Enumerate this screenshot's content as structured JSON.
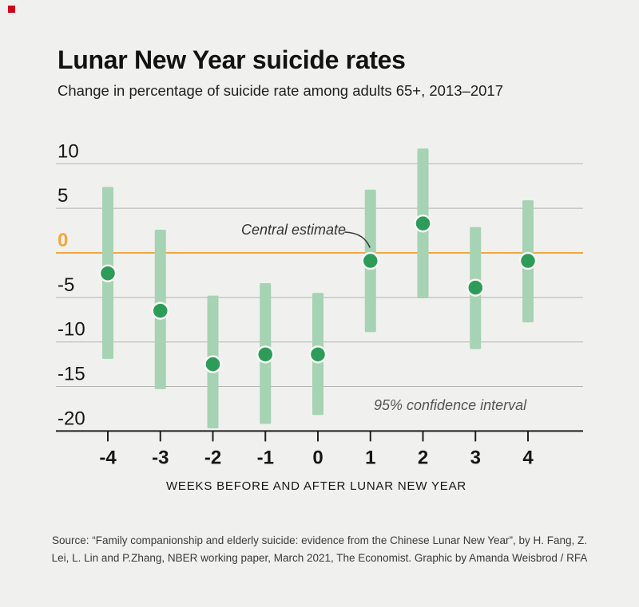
{
  "brand": {
    "mark_color": "#d0021b"
  },
  "header": {
    "title": "Lunar New Year suicide rates",
    "subtitle": "Change in percentage of suicide rate among adults 65+, 2013–2017"
  },
  "annotations": {
    "central_estimate": "Central estimate",
    "confidence_interval": "95% confidence interval"
  },
  "footer": {
    "line1": "Source: “Family companionship and elderly suicide: evidence from the Chinese Lunar New Year”, by H. Fang, Z.",
    "line2": "Lei, L. Lin and P.Zhang, NBER working paper, March 2021, The Economist. Graphic by Amanda Weisbrod / RFA"
  },
  "colors": {
    "background": "#f0f0ee",
    "ci_bar": "#a6d3b3",
    "dot": "#2e9c59",
    "dot_ring": "#f7f8f5",
    "zero_line": "#f2a63e",
    "gridline": "#b3b3af",
    "axis": "#1f1f1f",
    "text_dark": "#161616",
    "annotation_gray": "#555555"
  },
  "chart_data": {
    "type": "scatter",
    "title": "Lunar New Year suicide rates",
    "subtitle": "Change in percentage of suicide rate among adults 65+, 2013–2017",
    "xlabel": "WEEKS BEFORE AND AFTER LUNAR NEW YEAR",
    "ylabel": "",
    "categories": [
      -4,
      -3,
      -2,
      -1,
      0,
      1,
      2,
      3,
      4
    ],
    "series": [
      {
        "name": "Central estimate",
        "values": [
          -2.3,
          -6.5,
          -12.5,
          -11.4,
          -11.4,
          -0.9,
          3.3,
          -3.9,
          -0.9
        ]
      },
      {
        "name": "95% confidence interval low",
        "values": [
          -11.9,
          -15.3,
          -19.7,
          -19.2,
          -18.2,
          -8.9,
          -5.1,
          -10.8,
          -7.8
        ]
      },
      {
        "name": "95% confidence interval high",
        "values": [
          7.4,
          2.6,
          -4.8,
          -3.4,
          -4.5,
          7.1,
          11.7,
          2.9,
          5.9
        ]
      }
    ],
    "yticks": [
      10,
      5,
      0,
      -5,
      -10,
      -15,
      -20
    ],
    "ylim": [
      -20,
      12
    ],
    "grid": true,
    "zero_line": true,
    "legend_position": "none"
  }
}
